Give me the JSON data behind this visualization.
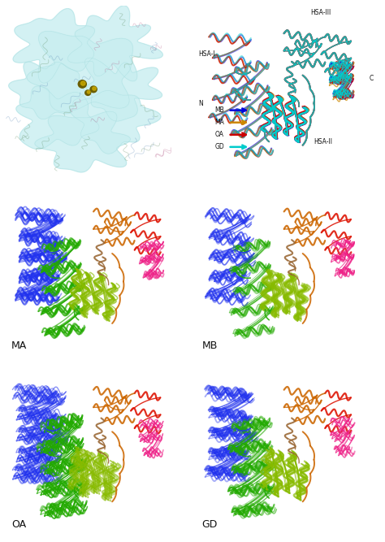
{
  "fig_width": 4.74,
  "fig_height": 6.67,
  "dpi": 100,
  "background": "#ffffff",
  "legend_items": [
    {
      "name": "MB",
      "color": "#0000dd"
    },
    {
      "name": "MA",
      "color": "#cc8800"
    },
    {
      "name": "OA",
      "color": "#cc0000"
    },
    {
      "name": "GD",
      "color": "#00cccc"
    }
  ],
  "surface_color": "#c0eeee",
  "panel_labels": [
    "MA",
    "MB",
    "OA",
    "GD"
  ],
  "blue_color": "#2233ee",
  "green_color": "#22aa00",
  "yellow_green_color": "#88bb00",
  "orange_color": "#cc6600",
  "brown_color": "#996633",
  "red_color": "#dd1100",
  "pink_color": "#ee2288",
  "label_fontsize": 9
}
